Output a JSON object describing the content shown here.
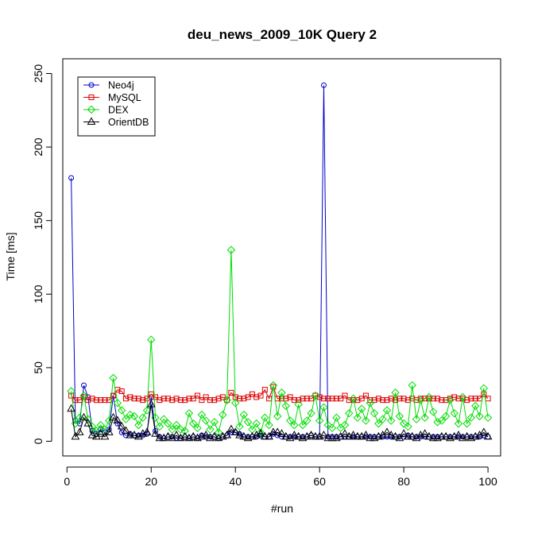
{
  "chart_data": {
    "type": "line",
    "title": "deu_news_2009_10K Query 2",
    "xlabel": "#run",
    "ylabel": "Time [ms]",
    "xlim": [
      -1,
      103
    ],
    "ylim": [
      -10,
      260
    ],
    "xticks": [
      "0",
      "20",
      "40",
      "60",
      "80",
      "100"
    ],
    "yticks": [
      "0",
      "50",
      "100",
      "150",
      "200",
      "250"
    ],
    "legend_position": "top-left",
    "grid": false,
    "series": [
      {
        "name": "Neo4j",
        "color": "#0000cc",
        "marker": "circle",
        "values": [
          179,
          14,
          12,
          38,
          30,
          7,
          5,
          8,
          6,
          8,
          31,
          12,
          6,
          4,
          5,
          4,
          4,
          4,
          5,
          30,
          7,
          3,
          2,
          3,
          3,
          2,
          2,
          3,
          2,
          3,
          2,
          4,
          3,
          3,
          3,
          2,
          3,
          4,
          6,
          6,
          5,
          3,
          3,
          3,
          3,
          4,
          3,
          3,
          5,
          4,
          3,
          3,
          3,
          3,
          3,
          3,
          3,
          4,
          3,
          3,
          242,
          3,
          3,
          3,
          3,
          3,
          3,
          3,
          3,
          3,
          3,
          3,
          3,
          3,
          3,
          3,
          3,
          3,
          3,
          3,
          4,
          3,
          3,
          3,
          3,
          3,
          3,
          3,
          3,
          3,
          3,
          3,
          3,
          3,
          3,
          3,
          3,
          3,
          4,
          3
        ]
      },
      {
        "name": "MySQL",
        "color": "#dd0000",
        "marker": "square",
        "values": [
          31,
          28,
          28,
          30,
          28,
          29,
          28,
          28,
          28,
          28,
          31,
          35,
          34,
          29,
          30,
          29,
          29,
          28,
          29,
          32,
          30,
          28,
          29,
          29,
          28,
          29,
          28,
          28,
          29,
          29,
          31,
          28,
          30,
          28,
          28,
          29,
          30,
          28,
          33,
          30,
          29,
          29,
          30,
          32,
          30,
          31,
          35,
          29,
          37,
          29,
          29,
          29,
          30,
          28,
          28,
          29,
          29,
          29,
          31,
          30,
          29,
          29,
          29,
          29,
          29,
          31,
          28,
          28,
          28,
          29,
          31,
          28,
          28,
          29,
          28,
          28,
          29,
          28,
          29,
          29,
          28,
          29,
          28,
          29,
          29,
          29,
          29,
          29,
          28,
          28,
          29,
          30,
          29,
          29,
          28,
          29,
          29,
          29,
          32,
          29
        ]
      },
      {
        "name": "DEX",
        "color": "#00dd00",
        "marker": "diamond",
        "values": [
          34,
          12,
          16,
          31,
          15,
          10,
          7,
          11,
          8,
          14,
          43,
          26,
          21,
          15,
          18,
          17,
          11,
          16,
          21,
          69,
          16,
          10,
          15,
          12,
          8,
          11,
          8,
          7,
          19,
          12,
          9,
          18,
          14,
          8,
          13,
          6,
          18,
          28,
          130,
          26,
          10,
          18,
          13,
          8,
          12,
          6,
          16,
          11,
          38,
          17,
          33,
          24,
          14,
          11,
          25,
          11,
          14,
          19,
          31,
          14,
          23,
          11,
          9,
          16,
          9,
          11,
          19,
          29,
          16,
          22,
          14,
          26,
          19,
          12,
          15,
          21,
          14,
          33,
          17,
          12,
          10,
          38,
          15,
          28,
          16,
          30,
          20,
          13,
          14,
          17,
          28,
          19,
          12,
          30,
          12,
          16,
          24,
          17,
          36,
          16
        ]
      },
      {
        "name": "OrientDB",
        "color": "#000000",
        "marker": "triangle",
        "values": [
          22,
          3,
          6,
          16,
          12,
          4,
          3,
          5,
          3,
          6,
          16,
          14,
          10,
          7,
          4,
          4,
          3,
          5,
          6,
          25,
          5,
          2,
          2,
          3,
          2,
          4,
          2,
          3,
          2,
          3,
          2,
          3,
          4,
          2,
          3,
          2,
          3,
          4,
          8,
          6,
          4,
          3,
          2,
          3,
          4,
          5,
          3,
          3,
          6,
          6,
          5,
          3,
          2,
          4,
          3,
          2,
          3,
          4,
          3,
          3,
          4,
          2,
          2,
          2,
          3,
          5,
          3,
          4,
          3,
          3,
          4,
          2,
          2,
          3,
          4,
          6,
          4,
          3,
          2,
          5,
          3,
          3,
          2,
          4,
          5,
          3,
          2,
          2,
          3,
          3,
          2,
          3,
          4,
          2,
          3,
          2,
          3,
          4,
          6,
          3
        ]
      }
    ]
  }
}
